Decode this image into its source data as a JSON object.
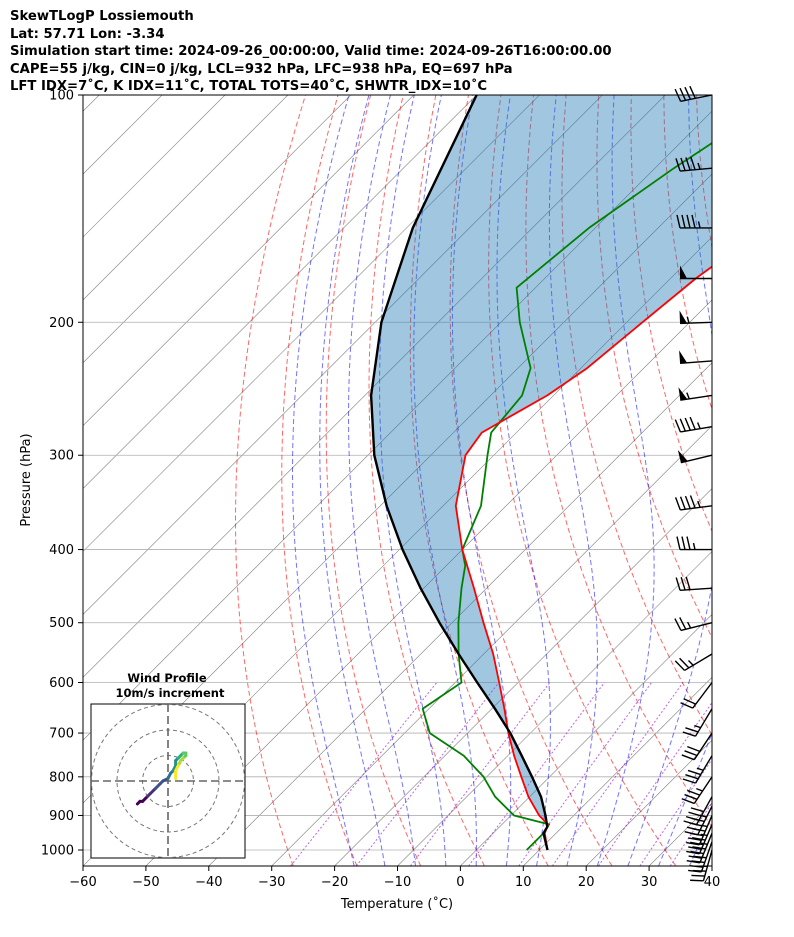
{
  "header": {
    "lines": [
      "SkewTLogP Lossiemouth",
      "Lat: 57.71   Lon: -3.34",
      "Simulation start time: 2024-09-26_00:00:00, Valid time: 2024-09-26T16:00:00.00",
      "CAPE=55 j/kg, CIN=0 j/kg, LCL=932 hPa, LFC=938 hPa, EQ=697 hPa",
      "LFT IDX=7˚C, K IDX=11˚C, TOTAL TOTS=40˚C, SHWTR_IDX=10˚C"
    ]
  },
  "chart_data": {
    "type": "line",
    "title": "SkewTLogP Lossiemouth",
    "xlabel": "Temperature (˚C)",
    "ylabel": "Pressure (hPa)",
    "xlim": [
      -60,
      40
    ],
    "ylim": [
      1050,
      100
    ],
    "y_scale": "log",
    "grid": true,
    "xticks": [
      "−60",
      "−50",
      "−40",
      "−30",
      "−20",
      "−10",
      "0",
      "10",
      "20",
      "30",
      "40"
    ],
    "yticks": [
      "100",
      "200",
      "300",
      "400",
      "500",
      "600",
      "700",
      "800",
      "900",
      "1000"
    ],
    "colors": {
      "temperature": "#ff0000",
      "dewpoint": "#008000",
      "parcel": "#000000",
      "cape_fill": "#1f77b4",
      "dry_adiabats": "#ff0000",
      "moist_adiabats": "#0000ff",
      "mixing_ratio": "#0000ff",
      "isotherms": "#808080"
    },
    "series": [
      {
        "key": "temperature",
        "pressure": [
          1000,
          950,
          925,
          900,
          850,
          800,
          750,
          700,
          650,
          600,
          550,
          500,
          450,
          400,
          350,
          300,
          280,
          250,
          230,
          200,
          175,
          150,
          125,
          100
        ],
        "values": [
          11.3,
          8.2,
          7.3,
          4.5,
          -0.2,
          -4.5,
          -9.0,
          -13.5,
          -18.0,
          -23.0,
          -28.5,
          -35.0,
          -42.0,
          -50.0,
          -58.0,
          -64.5,
          -65.5,
          -61.0,
          -59.0,
          -57.5,
          -56.0,
          -53.0,
          -49.0,
          -46.0
        ]
      },
      {
        "key": "dewpoint",
        "pressure": [
          1000,
          950,
          925,
          900,
          850,
          800,
          750,
          700,
          650,
          600,
          550,
          500,
          450,
          420,
          400,
          350,
          300,
          280,
          250,
          230,
          200,
          180,
          150,
          125,
          100
        ],
        "values": [
          8.0,
          8.0,
          7.5,
          0.5,
          -5.5,
          -10.5,
          -17.0,
          -26.0,
          -31.0,
          -29.0,
          -34.0,
          -39.0,
          -44.0,
          -47.0,
          -50.0,
          -54.0,
          -61.0,
          -64.0,
          -65.0,
          -68.0,
          -77.0,
          -83.0,
          -81.0,
          -77.0,
          -71.0
        ]
      },
      {
        "key": "parcel",
        "pressure": [
          1000,
          950,
          932,
          900,
          850,
          800,
          750,
          700,
          650,
          600,
          550,
          500,
          450,
          400,
          350,
          300,
          250,
          200,
          150,
          100
        ],
        "values": [
          11.3,
          8.0,
          7.6,
          5.5,
          1.8,
          -2.8,
          -7.8,
          -13.2,
          -19.5,
          -26.5,
          -34.0,
          -42.0,
          -50.5,
          -59.5,
          -69.0,
          -79.0,
          -89.0,
          -99.0,
          -109.0,
          -120.0
        ]
      }
    ],
    "wind_barbs": {
      "pressure": [
        1000,
        975,
        950,
        925,
        900,
        875,
        850,
        800,
        750,
        700,
        650,
        600,
        550,
        500,
        450,
        400,
        350,
        300,
        275,
        250,
        225,
        200,
        175,
        150,
        125,
        100
      ],
      "u": [
        5,
        7,
        9,
        9,
        9,
        10,
        10,
        10,
        9,
        8,
        6,
        6,
        10,
        12,
        15,
        19,
        23,
        25,
        24,
        27,
        26,
        27,
        25,
        24,
        22,
        20
      ],
      "v": [
        18,
        20,
        22,
        21,
        21,
        20,
        18,
        15,
        15,
        12,
        10,
        8,
        6,
        3,
        1,
        0,
        3,
        6,
        4,
        4,
        2,
        1,
        0,
        0,
        2,
        4
      ]
    },
    "hodograph": {
      "title": "Wind Profile",
      "subtitle": "10m/s increment",
      "ring_step": 10,
      "ring_count": 3,
      "u": [
        -12,
        -11,
        -10,
        -8,
        -7,
        -5,
        -3,
        -2,
        0,
        1,
        2,
        3,
        3,
        4,
        5,
        6,
        7,
        7,
        6,
        5,
        4,
        3,
        3
      ],
      "v": [
        -9,
        -8,
        -8,
        -6,
        -5,
        -3,
        -1,
        0,
        1,
        3,
        4,
        6,
        8,
        9,
        10,
        11,
        11,
        10,
        9,
        8,
        6,
        4,
        1
      ]
    }
  }
}
